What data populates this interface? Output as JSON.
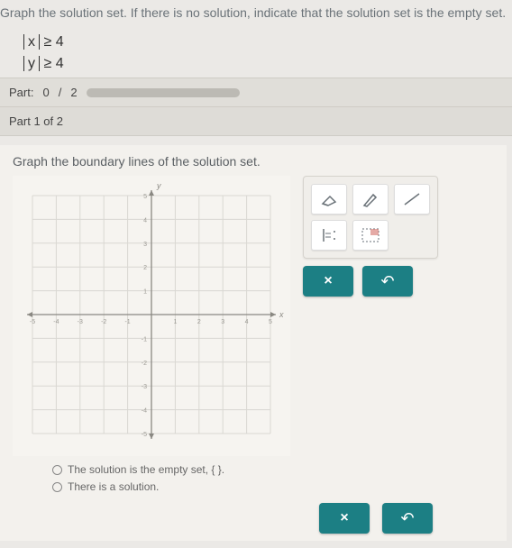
{
  "prompt": "Graph the solution set. If there is no solution, indicate that the solution set is the empty set.",
  "inequalities": [
    {
      "var": "x",
      "rel": "≥",
      "rhs": "4"
    },
    {
      "var": "y",
      "rel": "≥",
      "rhs": "4"
    }
  ],
  "partbar": {
    "label": "Part:",
    "done": "0",
    "sep": "/",
    "total": "2"
  },
  "subpart": "Part 1 of 2",
  "card_instr": "Graph the boundary lines of the solution set.",
  "graph": {
    "xlim": [
      -5,
      5
    ],
    "ylim": [
      -5,
      5
    ],
    "tick_step": 1,
    "xlabel": "x",
    "ylabel": "y",
    "grid_color": "#d9d7d2",
    "axis_color": "#8a8882",
    "tick_color": "#9b9993",
    "background": "#f6f4f0",
    "tick_fontsize": 7
  },
  "options": {
    "opt1": "The solution is the empty set, { }.",
    "opt2": "There is a solution."
  },
  "tools": {
    "eraser": "eraser-icon",
    "pencil": "pencil-icon",
    "line": "line-icon",
    "halfplane": "half-plane-icon",
    "region": "region-icon"
  },
  "buttons": {
    "clear": "×",
    "undo": "↶"
  },
  "colors": {
    "primary": "#1c7f84",
    "icon_stroke": "#6a7278"
  }
}
